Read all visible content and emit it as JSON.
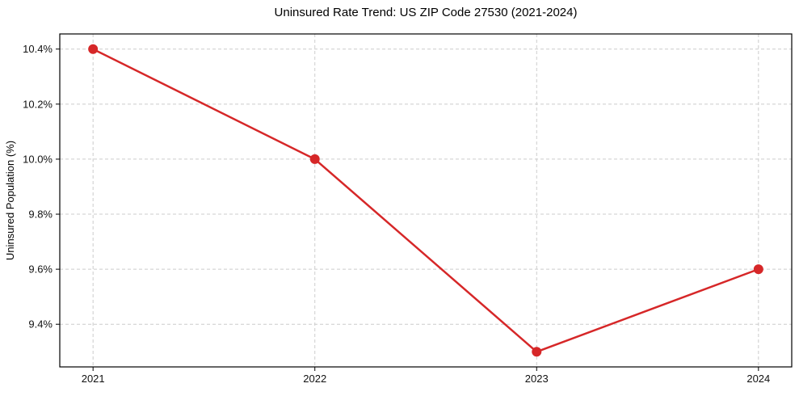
{
  "page": {
    "background": "#ffffff"
  },
  "chart_data": {
    "type": "line",
    "title": "Uninsured Rate Trend: US ZIP Code 27530 (2021-2024)",
    "xlabel": "",
    "ylabel": "Uninsured Population (%)",
    "x": [
      2021,
      2022,
      2023,
      2024
    ],
    "x_tick_labels": [
      "2021",
      "2022",
      "2023",
      "2024"
    ],
    "series": [
      {
        "name": "Uninsured rate",
        "values": [
          10.4,
          10.0,
          9.3,
          9.6
        ],
        "color": "#d62728",
        "marker": "circle"
      }
    ],
    "y_ticks": [
      9.4,
      9.6,
      9.8,
      10.0,
      10.2,
      10.4
    ],
    "y_tick_labels": [
      "9.4%",
      "9.6%",
      "9.8%",
      "10.0%",
      "10.2%",
      "10.4%"
    ],
    "xlim": [
      2020.85,
      2024.15
    ],
    "ylim": [
      9.245,
      10.455
    ],
    "grid": true,
    "grid_color": "#cccccc",
    "grid_style": "dashed",
    "axis_color": "#000000",
    "legend_position": "none"
  }
}
